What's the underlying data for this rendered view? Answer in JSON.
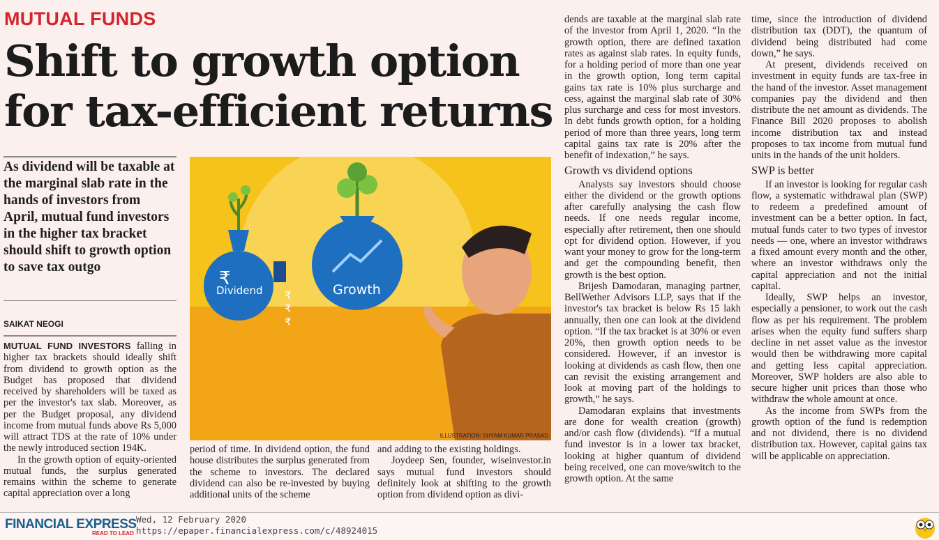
{
  "section": "MUTUAL FUNDS",
  "headline": "Shift to growth option for tax-efficient returns",
  "deck": "As dividend will be taxable at the marginal slab rate in the hands of investors from April, mutual fund investors in the higher tax bracket should shift to growth option to save tax outgo",
  "byline": "SAIKAT NEOGI",
  "illustration": {
    "label_dividend": "Dividend",
    "label_growth": "Growth",
    "rupee": "₹",
    "credit": "ILLUSTRATION: SHYAM KUMAR PRASAD",
    "colors": {
      "sky": "#f6c21c",
      "ground": "#f2a516",
      "bag": "#1f6fc0"
    }
  },
  "col1": {
    "lead": "MUTUAL FUND INVESTORS",
    "p1": " falling in higher tax brackets should ideally shift from dividend to growth option as the Budget has proposed that dividend received by shareholders will be taxed as per the investor's tax slab. Moreover, as per the Budget proposal, any dividend income from mutual funds above Rs 5,000 will attract TDS at the rate of 10% under the newly introduced section 194K.",
    "p2": "In the growth option of equity-oriented mutual funds, the surplus generated remains within the scheme to generate capital appreciation over a long"
  },
  "col2": {
    "p1": "period of time. In dividend option, the fund house distributes the surplus generated from the scheme to investors. The declared dividend can also be re-invested by buying additional units of the scheme"
  },
  "col3": {
    "p1": "and adding to the existing holdings.",
    "p2": "Joydeep Sen, founder, wiseinvestor.in says mutual fund investors should definitely look at shifting to the growth option from dividend option as divi-"
  },
  "col4": {
    "p1": "dends are taxable at the marginal slab rate of the investor from April 1, 2020. “In the growth option, there are defined taxation rates as against slab rates. In equity funds, for a holding period of more than one year in the growth option, long term capital gains tax rate is 10% plus surcharge and cess, against the marginal slab rate of 30% plus surcharge and cess for most investors. In debt funds growth option, for a holding period of more than three years, long term capital gains tax rate is 20% after the benefit of indexation,” he says.",
    "subhead": "Growth vs dividend options",
    "p2": "Analysts say investors should choose either the dividend or the growth options after carefully analysing the cash flow needs. If one needs regular income, especially after retirement, then one should opt for dividend option. However, if you want your money to grow for the long-term and get the compounding benefit, then growth is the best option.",
    "p3": "Brijesh Damodaran, managing partner, BellWether Advisors LLP, says that if the investor's tax bracket is below Rs 15 lakh annually, then one can look at the dividend option. “If the tax bracket is at 30% or even 20%, then growth option needs to be considered. However, if an investor is looking at dividends as cash flow, then one can revisit the existing arrangement and look at moving part of the holdings to growth,” he says.",
    "p4": "Damodaran explains that investments are done for wealth creation (growth) and/or cash flow (dividends). “If a mutual fund investor is in a lower tax bracket, looking at higher quantum of dividend being received, one can move/switch to the growth option. At the same"
  },
  "col5": {
    "p1": "time, since the introduction of dividend distribution tax (DDT), the quantum of dividend being distributed had come down,” he says.",
    "p2": "At present, dividends received on investment in equity funds are tax-free in the hand of the investor. Asset management companies pay the dividend and then distribute the net amount as dividends. The Finance Bill 2020 proposes to abolish income distribution tax and instead proposes to tax income from mutual fund units in the hands of the unit holders.",
    "subhead": "SWP is better",
    "p3": "If an investor is looking for regular cash flow, a systematic withdrawal plan (SWP) to redeem a predefined amount of investment can be a better option. In fact, mutual funds cater to two types of investor needs — one, where an investor withdraws a fixed amount every month and the other, where an investor withdraws only the capital appreciation and not the initial capital.",
    "p4": "Ideally, SWP helps an investor, especially a pensioner, to work out the cash flow as per his requirement. The problem arises when the equity fund suffers sharp decline in net asset value as the investor would then be withdrawing more capital and getting less capital appreciation. Moreover, SWP holders are also able to secure higher unit prices than those who withdraw the whole amount at once.",
    "p5": "As the income from SWPs from the growth option of the fund is redemption and not dividend, there is no dividend distribution tax. However, capital gains tax will be applicable on appreciation."
  },
  "footer": {
    "logo": "FINANCIAL EXPRESS",
    "tagline": "READ TO LEAD",
    "date": "Wed, 12 February 2020",
    "url": "https://epaper.financialexpress.com/c/48924015",
    "owl_icon": "owl-icon"
  }
}
